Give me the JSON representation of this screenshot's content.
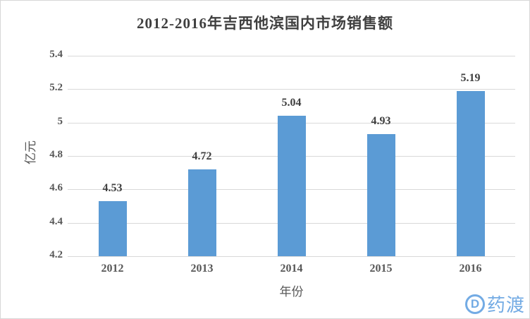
{
  "chart_data": {
    "type": "bar",
    "title": "2012-2016年吉西他滨国内市场销售额",
    "xlabel": "年份",
    "ylabel": "亿元",
    "categories": [
      "2012",
      "2013",
      "2014",
      "2015",
      "2016"
    ],
    "values": [
      4.53,
      4.72,
      5.04,
      4.93,
      5.19
    ],
    "value_labels": [
      "4.53",
      "4.72",
      "5.04",
      "4.93",
      "5.19"
    ],
    "y_ticks": [
      "5.4",
      "5.2",
      "5",
      "4.8",
      "4.6",
      "4.4",
      "4.2"
    ],
    "ylim": [
      4.2,
      5.4
    ],
    "grid": "horizontal",
    "legend": "none",
    "bar_color": "#5B9BD5",
    "gridline_color": "#D9D9D9"
  },
  "watermark": {
    "logo_letter": "D",
    "text": "药渡",
    "color": "#73ABE4"
  }
}
